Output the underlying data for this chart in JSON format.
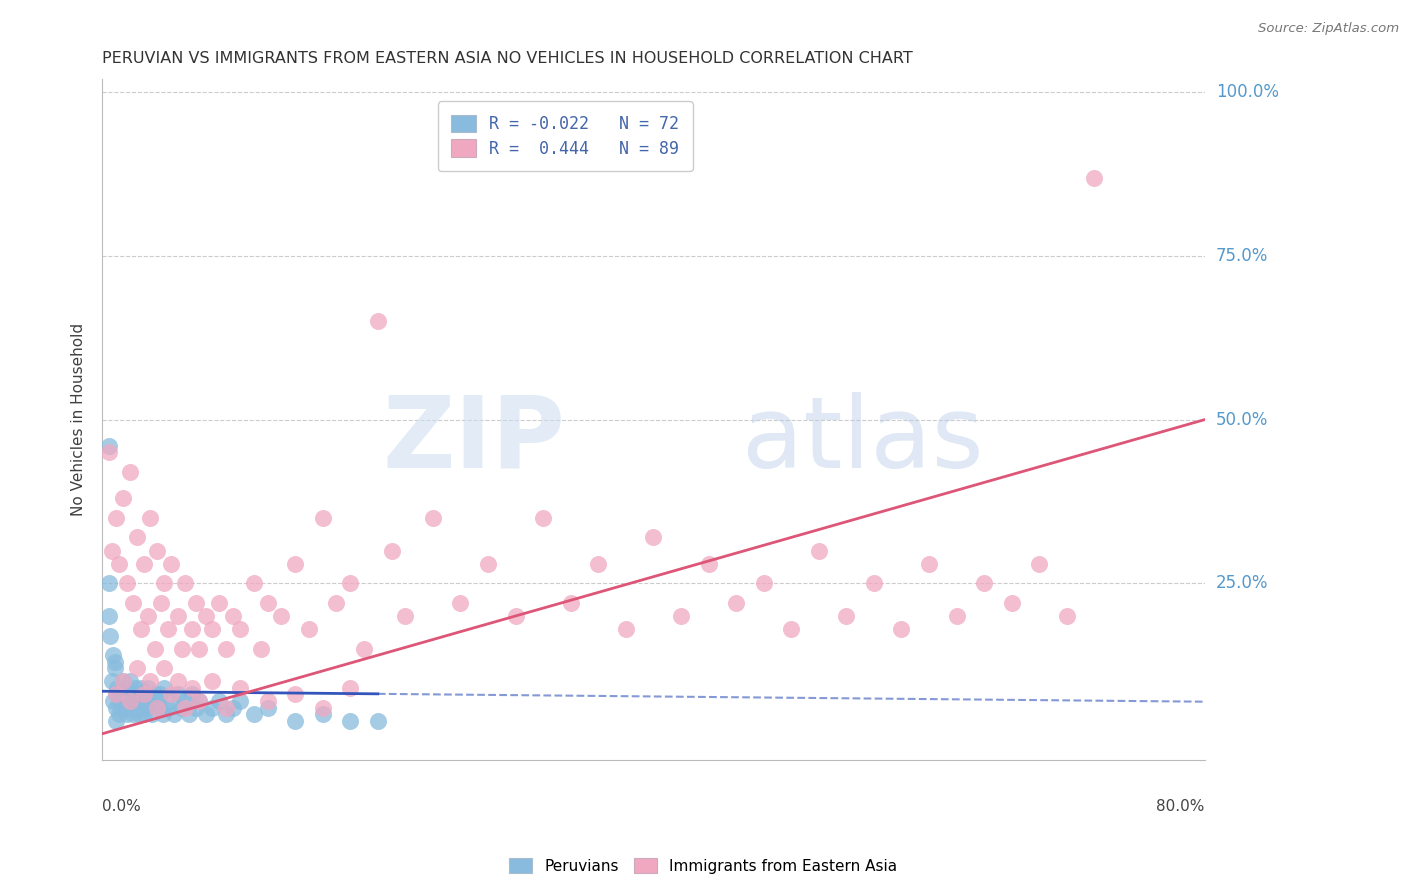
{
  "title": "PERUVIAN VS IMMIGRANTS FROM EASTERN ASIA NO VEHICLES IN HOUSEHOLD CORRELATION CHART",
  "source_text": "Source: ZipAtlas.com",
  "ylabel": "No Vehicles in Household",
  "xmin": 0.0,
  "xmax": 0.8,
  "ymin": -0.02,
  "ymax": 1.02,
  "blue_color": "#88bbdd",
  "pink_color": "#f0a8c0",
  "blue_line_color": "#3355bb",
  "pink_line_color": "#dd5577",
  "watermark": "ZIPatlas",
  "watermark_blue": "#ccddef",
  "watermark_atlas": "#b8cce8",
  "R_blue": -0.022,
  "R_pink": 0.444,
  "N_blue": 72,
  "N_pink": 89,
  "legend_label_blue": "R = -0.022   N = 72",
  "legend_label_pink": "R =  0.444   N = 89",
  "ytick_vals": [
    0.0,
    0.25,
    0.5,
    0.75,
    1.0
  ],
  "ytick_labels": [
    "",
    "25.0%",
    "50.0%",
    "75.0%",
    "100.0%"
  ],
  "blue_scatter_x": [
    0.005,
    0.005,
    0.007,
    0.008,
    0.009,
    0.01,
    0.01,
    0.01,
    0.011,
    0.012,
    0.012,
    0.013,
    0.014,
    0.015,
    0.015,
    0.016,
    0.017,
    0.018,
    0.018,
    0.019,
    0.02,
    0.02,
    0.021,
    0.022,
    0.022,
    0.023,
    0.024,
    0.025,
    0.025,
    0.026,
    0.027,
    0.028,
    0.029,
    0.03,
    0.03,
    0.031,
    0.032,
    0.033,
    0.035,
    0.036,
    0.038,
    0.04,
    0.041,
    0.042,
    0.044,
    0.045,
    0.048,
    0.05,
    0.052,
    0.055,
    0.058,
    0.06,
    0.063,
    0.065,
    0.068,
    0.07,
    0.075,
    0.08,
    0.085,
    0.09,
    0.095,
    0.1,
    0.11,
    0.12,
    0.14,
    0.16,
    0.18,
    0.2,
    0.005,
    0.008,
    0.006,
    0.009
  ],
  "blue_scatter_y": [
    0.46,
    0.25,
    0.1,
    0.07,
    0.12,
    0.08,
    0.06,
    0.04,
    0.09,
    0.07,
    0.05,
    0.08,
    0.06,
    0.1,
    0.07,
    0.08,
    0.06,
    0.09,
    0.05,
    0.07,
    0.1,
    0.07,
    0.06,
    0.08,
    0.05,
    0.07,
    0.09,
    0.06,
    0.08,
    0.07,
    0.05,
    0.09,
    0.06,
    0.08,
    0.05,
    0.07,
    0.06,
    0.09,
    0.07,
    0.05,
    0.08,
    0.07,
    0.06,
    0.08,
    0.05,
    0.09,
    0.06,
    0.07,
    0.05,
    0.08,
    0.06,
    0.07,
    0.05,
    0.08,
    0.06,
    0.07,
    0.05,
    0.06,
    0.07,
    0.05,
    0.06,
    0.07,
    0.05,
    0.06,
    0.04,
    0.05,
    0.04,
    0.04,
    0.2,
    0.14,
    0.17,
    0.13
  ],
  "pink_scatter_x": [
    0.005,
    0.007,
    0.01,
    0.012,
    0.015,
    0.018,
    0.02,
    0.022,
    0.025,
    0.028,
    0.03,
    0.033,
    0.035,
    0.038,
    0.04,
    0.043,
    0.045,
    0.048,
    0.05,
    0.055,
    0.058,
    0.06,
    0.065,
    0.068,
    0.07,
    0.075,
    0.08,
    0.085,
    0.09,
    0.095,
    0.1,
    0.11,
    0.115,
    0.12,
    0.13,
    0.14,
    0.15,
    0.16,
    0.17,
    0.18,
    0.19,
    0.2,
    0.21,
    0.22,
    0.24,
    0.26,
    0.28,
    0.3,
    0.32,
    0.34,
    0.36,
    0.38,
    0.4,
    0.42,
    0.44,
    0.46,
    0.48,
    0.5,
    0.52,
    0.54,
    0.56,
    0.58,
    0.6,
    0.62,
    0.64,
    0.66,
    0.68,
    0.7,
    0.72,
    0.01,
    0.015,
    0.02,
    0.025,
    0.03,
    0.035,
    0.04,
    0.045,
    0.05,
    0.055,
    0.06,
    0.065,
    0.07,
    0.08,
    0.09,
    0.1,
    0.12,
    0.14,
    0.16,
    0.18
  ],
  "pink_scatter_y": [
    0.45,
    0.3,
    0.35,
    0.28,
    0.38,
    0.25,
    0.42,
    0.22,
    0.32,
    0.18,
    0.28,
    0.2,
    0.35,
    0.15,
    0.3,
    0.22,
    0.25,
    0.18,
    0.28,
    0.2,
    0.15,
    0.25,
    0.18,
    0.22,
    0.15,
    0.2,
    0.18,
    0.22,
    0.15,
    0.2,
    0.18,
    0.25,
    0.15,
    0.22,
    0.2,
    0.28,
    0.18,
    0.35,
    0.22,
    0.25,
    0.15,
    0.65,
    0.3,
    0.2,
    0.35,
    0.22,
    0.28,
    0.2,
    0.35,
    0.22,
    0.28,
    0.18,
    0.32,
    0.2,
    0.28,
    0.22,
    0.25,
    0.18,
    0.3,
    0.2,
    0.25,
    0.18,
    0.28,
    0.2,
    0.25,
    0.22,
    0.28,
    0.2,
    0.87,
    0.08,
    0.1,
    0.07,
    0.12,
    0.08,
    0.1,
    0.06,
    0.12,
    0.08,
    0.1,
    0.06,
    0.09,
    0.07,
    0.1,
    0.06,
    0.09,
    0.07,
    0.08,
    0.06,
    0.09
  ]
}
